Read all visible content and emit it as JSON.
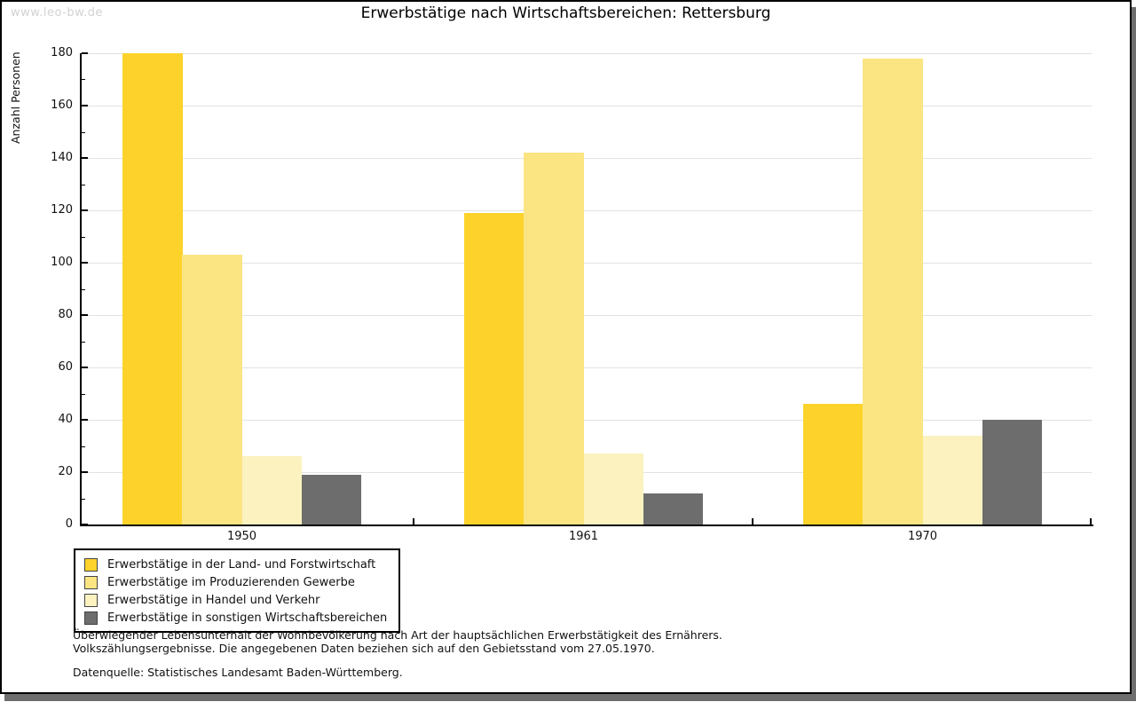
{
  "watermark": "www.leo-bw.de",
  "chart_data": {
    "type": "bar",
    "title": "Erwerbstätige nach Wirtschaftsbereichen: Rettersburg",
    "ylabel": "Anzahl Personen",
    "xlabel": "",
    "categories": [
      "1950",
      "1961",
      "1970"
    ],
    "series": [
      {
        "name": "Erwerbstätige in der Land- und Forstwirtschaft",
        "color": "#fdd32b",
        "values": [
          180,
          119,
          46
        ]
      },
      {
        "name": "Erwerbstätige im Produzierenden Gewerbe",
        "color": "#fbe583",
        "values": [
          103,
          142,
          178
        ]
      },
      {
        "name": "Erwerbstätige in Handel und Verkehr",
        "color": "#fbf2c0",
        "values": [
          26,
          27,
          34
        ]
      },
      {
        "name": "Erwerbstätige in sonstigen Wirtschaftsbereichen",
        "color": "#6d6d6d",
        "values": [
          19,
          12,
          40
        ]
      }
    ],
    "ylim": [
      0,
      180
    ],
    "y_major_step": 20,
    "y_minor_step": 10,
    "grid": "horizontal",
    "legend_position": "bottom-left"
  },
  "footnotes": {
    "line1": "Überwiegender Lebensunterhalt der Wohnbevölkerung nach Art der hauptsächlichen Erwerbstätigkeit des Ernährers.",
    "line2": "Volkszählungsergebnisse. Die angegebenen Daten beziehen sich auf den Gebietsstand vom 27.05.1970.",
    "source": "Datenquelle: Statistisches Landesamt Baden-Württemberg."
  }
}
